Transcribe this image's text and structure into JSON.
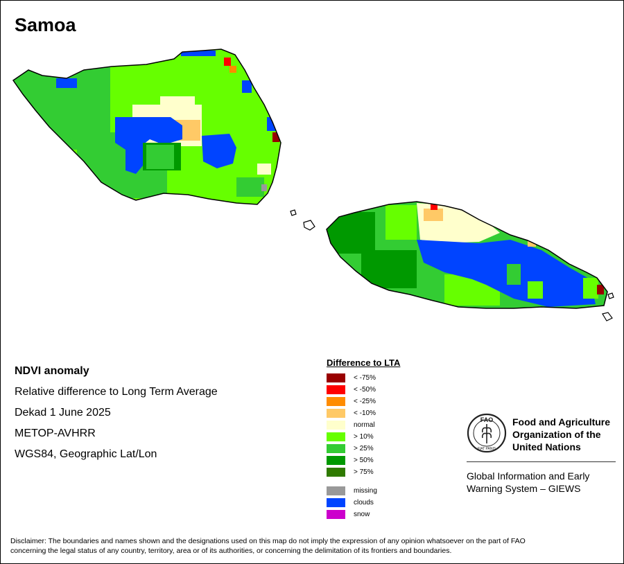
{
  "map": {
    "title": "Samoa",
    "colors": {
      "coast": "#000000",
      "lt_minus_75": "#990000",
      "lt_minus_50": "#ff0000",
      "lt_minus_25": "#ff8c00",
      "lt_minus_10": "#ffc966",
      "normal": "#ffffcc",
      "gt_10": "#66ff00",
      "gt_25": "#33cc33",
      "gt_50": "#009900",
      "gt_75": "#2f7a00",
      "missing": "#999999",
      "clouds": "#0044ff",
      "snow": "#cc00cc"
    }
  },
  "info": {
    "product": "NDVI anomaly",
    "description": "Relative difference to Long Term Average",
    "period": "Dekad 1 June 2025",
    "sensor": "METOP-AVHRR",
    "projection": "WGS84, Geographic Lat/Lon"
  },
  "legend": {
    "title": "Difference to LTA",
    "classes": [
      {
        "label": "< -75%",
        "color": "#990000"
      },
      {
        "label": "< -50%",
        "color": "#ff0000"
      },
      {
        "label": "< -25%",
        "color": "#ff8c00"
      },
      {
        "label": "< -10%",
        "color": "#ffc966"
      },
      {
        "label": "normal",
        "color": "#ffffcc"
      },
      {
        "label": "> 10%",
        "color": "#66ff00"
      },
      {
        "label": "> 25%",
        "color": "#33cc33"
      },
      {
        "label": "> 50%",
        "color": "#009900"
      },
      {
        "label": "> 75%",
        "color": "#2f7a00"
      }
    ],
    "special": [
      {
        "label": "missing",
        "color": "#999999"
      },
      {
        "label": "clouds",
        "color": "#0044ff"
      },
      {
        "label": "snow",
        "color": "#cc00cc"
      }
    ]
  },
  "branding": {
    "emblem_icon": "fao-emblem-icon",
    "emblem_text": "FAO",
    "emblem_motto": "FIAT PANIS",
    "org_line1": "Food and Agriculture",
    "org_line2": "Organization of the",
    "org_line3": "United Nations",
    "system_line1": "Global Information and Early",
    "system_line2": "Warning System – GIEWS"
  },
  "disclaimer": {
    "line1": "Disclaimer: The boundaries and names shown and the designations used on this map do not imply the expression of any opinion whatsoever on the part of FAO",
    "line2": "concerning the legal status of any country, territory, area or of its authorities, or concerning the delimitation of its frontiers and boundaries."
  }
}
